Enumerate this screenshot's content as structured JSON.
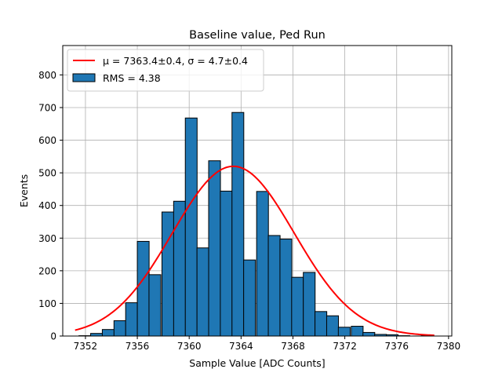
{
  "chart_data": {
    "type": "histogram",
    "title": "Baseline value, Ped Run",
    "xlabel": "Sample Value [ADC Counts]",
    "ylabel": "Events",
    "xlim": [
      7350.25,
      7380.25
    ],
    "ylim": [
      0,
      890
    ],
    "grid": true,
    "xticks": [
      7352,
      7356,
      7360,
      7364,
      7368,
      7372,
      7376,
      7380
    ],
    "yticks": [
      0,
      100,
      200,
      300,
      400,
      500,
      600,
      700,
      800
    ],
    "bin_width": 0.91,
    "bins": [
      {
        "x0": 7351.5,
        "count": 1
      },
      {
        "x0": 7352.4,
        "count": 8
      },
      {
        "x0": 7353.3,
        "count": 20
      },
      {
        "x0": 7354.2,
        "count": 47
      },
      {
        "x0": 7355.1,
        "count": 102
      },
      {
        "x0": 7356.0,
        "count": 290
      },
      {
        "x0": 7356.9,
        "count": 188
      },
      {
        "x0": 7357.9,
        "count": 380
      },
      {
        "x0": 7358.8,
        "count": 413
      },
      {
        "x0": 7359.7,
        "count": 668
      },
      {
        "x0": 7360.6,
        "count": 270
      },
      {
        "x0": 7361.5,
        "count": 537
      },
      {
        "x0": 7362.4,
        "count": 444
      },
      {
        "x0": 7363.3,
        "count": 685
      },
      {
        "x0": 7364.2,
        "count": 233
      },
      {
        "x0": 7365.2,
        "count": 443
      },
      {
        "x0": 7366.1,
        "count": 308
      },
      {
        "x0": 7367.0,
        "count": 297
      },
      {
        "x0": 7367.9,
        "count": 180
      },
      {
        "x0": 7368.8,
        "count": 195
      },
      {
        "x0": 7369.7,
        "count": 75
      },
      {
        "x0": 7370.6,
        "count": 62
      },
      {
        "x0": 7371.5,
        "count": 27
      },
      {
        "x0": 7372.5,
        "count": 30
      },
      {
        "x0": 7373.4,
        "count": 11
      },
      {
        "x0": 7374.3,
        "count": 5
      },
      {
        "x0": 7375.2,
        "count": 4
      },
      {
        "x0": 7376.1,
        "count": 1
      },
      {
        "x0": 7377.0,
        "count": 0
      },
      {
        "x0": 7377.9,
        "count": 1
      }
    ],
    "fit": {
      "type": "gaussian",
      "mu": 7363.4,
      "sigma": 4.7,
      "amplitude": 520,
      "x_range": [
        7351.2,
        7378.9
      ]
    },
    "legend": {
      "position": "upper-left",
      "entries": [
        {
          "label": "μ = 7363.4±0.4, σ = 4.7±0.4",
          "kind": "line",
          "color": "#ff0000"
        },
        {
          "label": "RMS = 4.38",
          "kind": "patch",
          "color": "#1f77b4"
        }
      ]
    },
    "colors": {
      "bar_fill": "#1f77b4",
      "bar_edge": "#000000",
      "fit_line": "#ff0000",
      "grid": "#b0b0b0"
    }
  }
}
